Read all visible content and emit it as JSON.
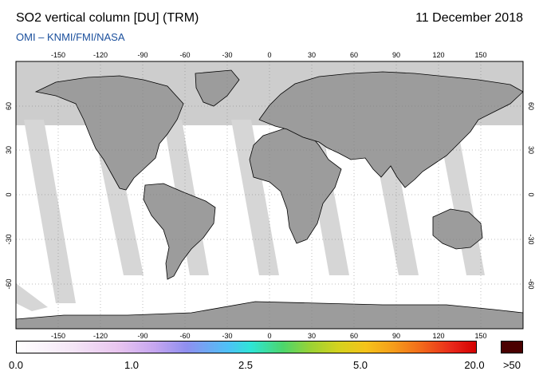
{
  "header": {
    "title": "SO2 vertical column [DU] (TRM)",
    "date": "11 December 2018",
    "credit": "OMI  –  KNMI/FMI/NASA"
  },
  "map": {
    "projection": "equirectangular",
    "lon_range": [
      -180,
      180
    ],
    "lat_range": [
      -90,
      90
    ],
    "lon_ticks": [
      "-150",
      "-120",
      "-90",
      "-60",
      "-30",
      "0",
      "30",
      "60",
      "90",
      "120",
      "150"
    ],
    "lat_ticks": [
      "60",
      "30",
      "0",
      "-30",
      "-60"
    ],
    "colors": {
      "no_data": "#cdcdcd",
      "land": "#9c9c9c",
      "swath_gap": "#d6d6d6",
      "ocean_valid": "#ffffff",
      "coastline": "#000000"
    }
  },
  "colorbar": {
    "labels": [
      "0.0",
      "1.0",
      "2.5",
      "5.0",
      "20.0",
      ">50"
    ],
    "overflow_color": "#4a0000"
  }
}
